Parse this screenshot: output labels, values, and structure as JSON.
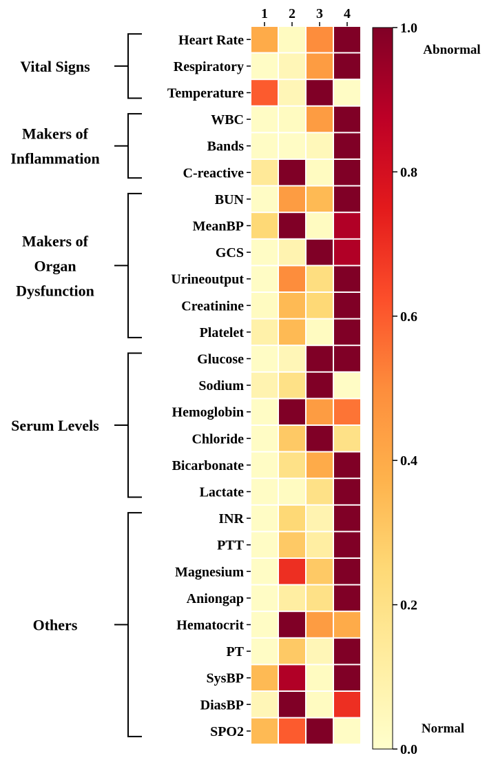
{
  "chart_data": {
    "type": "heatmap",
    "columns": [
      "1",
      "2",
      "3",
      "4"
    ],
    "rows": [
      "Heart Rate",
      "Respiratory",
      "Temperature",
      "WBC",
      "Bands",
      "C-reactive",
      "BUN",
      "MeanBP",
      "GCS",
      "Urineoutput",
      "Creatinine",
      "Platelet",
      "Glucose",
      "Sodium",
      "Hemoglobin",
      "Chloride",
      "Bicarbonate",
      "Lactate",
      "INR",
      "PTT",
      "Magnesium",
      "Aniongap",
      "Hematocrit",
      "PT",
      "SysBP",
      "DiasBP",
      "SPO2"
    ],
    "values": [
      [
        0.4,
        0.03,
        0.5,
        1.0
      ],
      [
        0.02,
        0.06,
        0.45,
        1.0
      ],
      [
        0.6,
        0.06,
        1.0,
        0.02
      ],
      [
        0.02,
        0.03,
        0.45,
        1.0
      ],
      [
        0.02,
        0.02,
        0.05,
        1.0
      ],
      [
        0.15,
        1.0,
        0.03,
        1.0
      ],
      [
        0.02,
        0.45,
        0.35,
        1.0
      ],
      [
        0.25,
        1.0,
        0.03,
        0.9
      ],
      [
        0.02,
        0.08,
        1.0,
        0.9
      ],
      [
        0.02,
        0.5,
        0.22,
        1.0
      ],
      [
        0.03,
        0.35,
        0.25,
        1.0
      ],
      [
        0.1,
        0.35,
        0.03,
        1.0
      ],
      [
        0.02,
        0.06,
        1.0,
        1.0
      ],
      [
        0.08,
        0.2,
        1.0,
        0.02
      ],
      [
        0.02,
        1.0,
        0.45,
        0.55
      ],
      [
        0.02,
        0.3,
        1.0,
        0.2
      ],
      [
        0.02,
        0.2,
        0.4,
        1.0
      ],
      [
        0.02,
        0.03,
        0.2,
        1.0
      ],
      [
        0.02,
        0.25,
        0.08,
        1.0
      ],
      [
        0.02,
        0.3,
        0.12,
        1.0
      ],
      [
        0.02,
        0.7,
        0.3,
        1.0
      ],
      [
        0.02,
        0.12,
        0.2,
        1.0
      ],
      [
        0.02,
        1.0,
        0.45,
        0.4
      ],
      [
        0.02,
        0.3,
        0.06,
        1.0
      ],
      [
        0.35,
        0.9,
        0.03,
        1.0
      ],
      [
        0.06,
        1.0,
        0.03,
        0.7
      ],
      [
        0.35,
        0.6,
        1.0,
        0.02
      ]
    ],
    "groups": [
      {
        "label": [
          "Vital Signs"
        ],
        "start": 0,
        "end": 2
      },
      {
        "label": [
          "Makers of",
          "Inflammation"
        ],
        "start": 3,
        "end": 5
      },
      {
        "label": [
          "Makers of",
          "Organ",
          "Dysfunction"
        ],
        "start": 6,
        "end": 11
      },
      {
        "label": [
          "Serum Levels"
        ],
        "start": 12,
        "end": 17
      },
      {
        "label": [
          "Others"
        ],
        "start": 18,
        "end": 26
      }
    ],
    "colorbar": {
      "range": [
        0.0,
        1.0
      ],
      "ticks": [
        "0.0",
        "0.2",
        "0.4",
        "0.6",
        "0.8",
        "1.0"
      ],
      "top_label": "Abnormal",
      "bottom_label": "Normal",
      "colormap": "YlOrRd",
      "stops": [
        "#ffffcc",
        "#ffeda0",
        "#fed976",
        "#feb24c",
        "#fd8d3c",
        "#fc4e2a",
        "#e31a1c",
        "#bd0026",
        "#800026"
      ]
    },
    "grid": false
  }
}
